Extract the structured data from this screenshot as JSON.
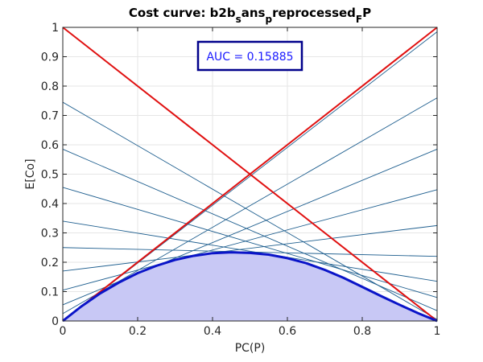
{
  "chart_data": {
    "type": "line",
    "title": {
      "parts": [
        {
          "text": "Cost curve: b2b",
          "shift": "none"
        },
        {
          "text": "s",
          "shift": "sub"
        },
        {
          "text": "ans",
          "shift": "none"
        },
        {
          "text": "p",
          "shift": "sub"
        },
        {
          "text": "reprocessed",
          "shift": "none"
        },
        {
          "text": "F",
          "shift": "sub"
        },
        {
          "text": "P",
          "shift": "none"
        }
      ]
    },
    "xlabel": "PC(P)",
    "ylabel": "E[Co]",
    "xlim": [
      0,
      1
    ],
    "ylim": [
      0,
      1
    ],
    "xticks": [
      0,
      0.2,
      0.4,
      0.6,
      0.8,
      1
    ],
    "xtick_labels": [
      "0",
      "0.2",
      "0.4",
      "0.6",
      "0.8",
      "1"
    ],
    "yticks": [
      0,
      0.1,
      0.2,
      0.3,
      0.4,
      0.5,
      0.6,
      0.7,
      0.8,
      0.9,
      1
    ],
    "ytick_labels": [
      "0",
      "0.1",
      "0.2",
      "0.3",
      "0.4",
      "0.5",
      "0.6",
      "0.7",
      "0.8",
      "0.9",
      "1"
    ],
    "grid": true,
    "annotation": "AUC = 0.15885",
    "colors": {
      "cost_lines": "#1f5f8f",
      "trivial_lines": "#e01010",
      "lower_envelope": "#0a14c8",
      "area_fill": "#c8c8f5",
      "annotation_text": "#1a1aff",
      "annotation_border": "#00008b"
    },
    "cost_lines": [
      {
        "y0": 0.0,
        "y1": 0.985
      },
      {
        "y0": 0.025,
        "y1": 0.76
      },
      {
        "y0": 0.055,
        "y1": 0.585
      },
      {
        "y0": 0.105,
        "y1": 0.447
      },
      {
        "y0": 0.17,
        "y1": 0.325
      },
      {
        "y0": 0.25,
        "y1": 0.22
      },
      {
        "y0": 0.34,
        "y1": 0.135
      },
      {
        "y0": 0.455,
        "y1": 0.08
      },
      {
        "y0": 0.585,
        "y1": 0.035
      },
      {
        "y0": 0.745,
        "y1": 0.005
      },
      {
        "y0": 1.0,
        "y1": 0.0
      }
    ],
    "trivial_lines": [
      {
        "y0": 0,
        "y1": 1
      },
      {
        "y0": 1,
        "y1": 0
      }
    ],
    "lower_envelope": {
      "x": [
        0,
        0.05,
        0.1,
        0.15,
        0.2,
        0.25,
        0.3,
        0.35,
        0.4,
        0.45,
        0.5,
        0.55,
        0.6,
        0.65,
        0.7,
        0.75,
        0.8,
        0.85,
        0.9,
        0.95,
        1
      ],
      "y": [
        0,
        0.05,
        0.094,
        0.131,
        0.163,
        0.188,
        0.208,
        0.222,
        0.231,
        0.234,
        0.232,
        0.226,
        0.214,
        0.197,
        0.174,
        0.147,
        0.116,
        0.085,
        0.055,
        0.026,
        0
      ]
    }
  }
}
